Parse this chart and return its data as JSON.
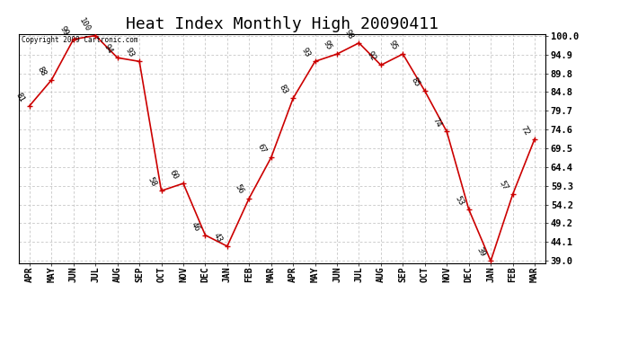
{
  "title": "Heat Index Monthly High 20090411",
  "copyright": "Copyright 2009 Cartronic.com",
  "months": [
    "APR",
    "MAY",
    "JUN",
    "JUL",
    "AUG",
    "SEP",
    "OCT",
    "NOV",
    "DEC",
    "JAN",
    "FEB",
    "MAR",
    "APR",
    "MAY",
    "JUN",
    "JUL",
    "AUG",
    "SEP",
    "OCT",
    "NOV",
    "DEC",
    "JAN",
    "FEB",
    "MAR"
  ],
  "values": [
    81,
    88,
    99,
    100,
    94,
    93,
    58,
    60,
    46,
    43,
    56,
    67,
    83,
    93,
    95,
    98,
    92,
    95,
    85,
    74,
    53,
    39,
    57,
    72
  ],
  "line_color": "#cc0000",
  "marker_color": "#cc0000",
  "bg_color": "#ffffff",
  "grid_color": "#bbbbbb",
  "yticks": [
    39.0,
    44.1,
    49.2,
    54.2,
    59.3,
    64.4,
    69.5,
    74.6,
    79.7,
    84.8,
    89.8,
    94.9,
    100.0
  ],
  "ymin": 39.0,
  "ymax": 100.0,
  "title_fontsize": 13
}
